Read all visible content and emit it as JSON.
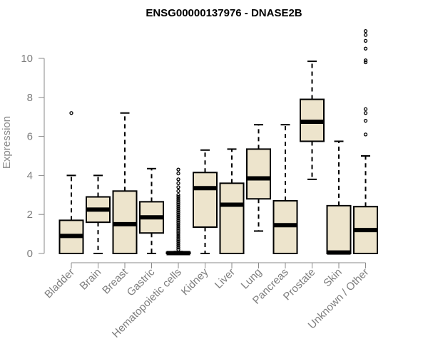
{
  "chart_data": {
    "type": "boxplot",
    "title": "ENSG00000137976 - DNASE2B",
    "xlabel": "",
    "ylabel": "Expression",
    "ylim": [
      0,
      10
    ],
    "yticks": [
      0,
      2,
      4,
      6,
      8,
      10
    ],
    "grid": false,
    "colors": {
      "box_fill": "#ede4cc",
      "outline": "#000000",
      "axis": "#8a8a8a"
    },
    "categories": [
      "Bladder",
      "Brain",
      "Breast",
      "Gastric",
      "Hematopoietic cells",
      "Kidney",
      "Liver",
      "Lung",
      "Pancreas",
      "Prostate",
      "Skin",
      "Unknown / Other"
    ],
    "series": [
      {
        "values": [
          {
            "min": 0,
            "q1": 0,
            "median": 0.9,
            "q3": 1.7,
            "max": 4.0,
            "outliers": [
              7.2
            ]
          },
          {
            "min": 0,
            "q1": 1.6,
            "median": 2.25,
            "q3": 2.9,
            "max": 4.0,
            "outliers": []
          },
          {
            "min": 0,
            "q1": 0,
            "median": 1.5,
            "q3": 3.2,
            "max": 7.2,
            "outliers": []
          },
          {
            "min": 0,
            "q1": 1.05,
            "median": 1.85,
            "q3": 2.65,
            "max": 4.35,
            "outliers": []
          },
          {
            "min": 0,
            "q1": 0,
            "median": 0.02,
            "q3": 0.06,
            "max": 0.1,
            "outliers": [
              4.3,
              4.1,
              3.8,
              3.6,
              3.4,
              3.2,
              3.0,
              2.9,
              2.8,
              2.7,
              2.6,
              2.5,
              2.4,
              2.3,
              2.2,
              2.1,
              2.0,
              1.9,
              1.8,
              1.7,
              1.6,
              1.5,
              1.4,
              1.3,
              1.2,
              1.1,
              1.0,
              0.9,
              0.8,
              0.7,
              0.6,
              0.5,
              0.4,
              0.3,
              0.2
            ]
          },
          {
            "min": 0,
            "q1": 1.35,
            "median": 3.35,
            "q3": 4.15,
            "max": 5.3,
            "outliers": []
          },
          {
            "min": 0,
            "q1": 0,
            "median": 2.5,
            "q3": 3.6,
            "max": 5.35,
            "outliers": []
          },
          {
            "min": 1.15,
            "q1": 2.8,
            "median": 3.85,
            "q3": 5.35,
            "max": 6.6,
            "outliers": []
          },
          {
            "min": 0,
            "q1": 0,
            "median": 1.45,
            "q3": 2.7,
            "max": 6.6,
            "outliers": []
          },
          {
            "min": 3.8,
            "q1": 5.75,
            "median": 6.75,
            "q3": 7.9,
            "max": 9.85,
            "outliers": []
          },
          {
            "min": 0,
            "q1": 0,
            "median": 0.05,
            "q3": 2.45,
            "max": 5.75,
            "outliers": []
          },
          {
            "min": 0,
            "q1": 0,
            "median": 1.2,
            "q3": 2.4,
            "max": 5.0,
            "outliers": [
              6.1,
              6.8,
              7.2,
              7.4,
              9.8,
              9.9,
              10.5,
              10.9,
              11.2,
              11.4
            ]
          }
        ]
      }
    ]
  }
}
